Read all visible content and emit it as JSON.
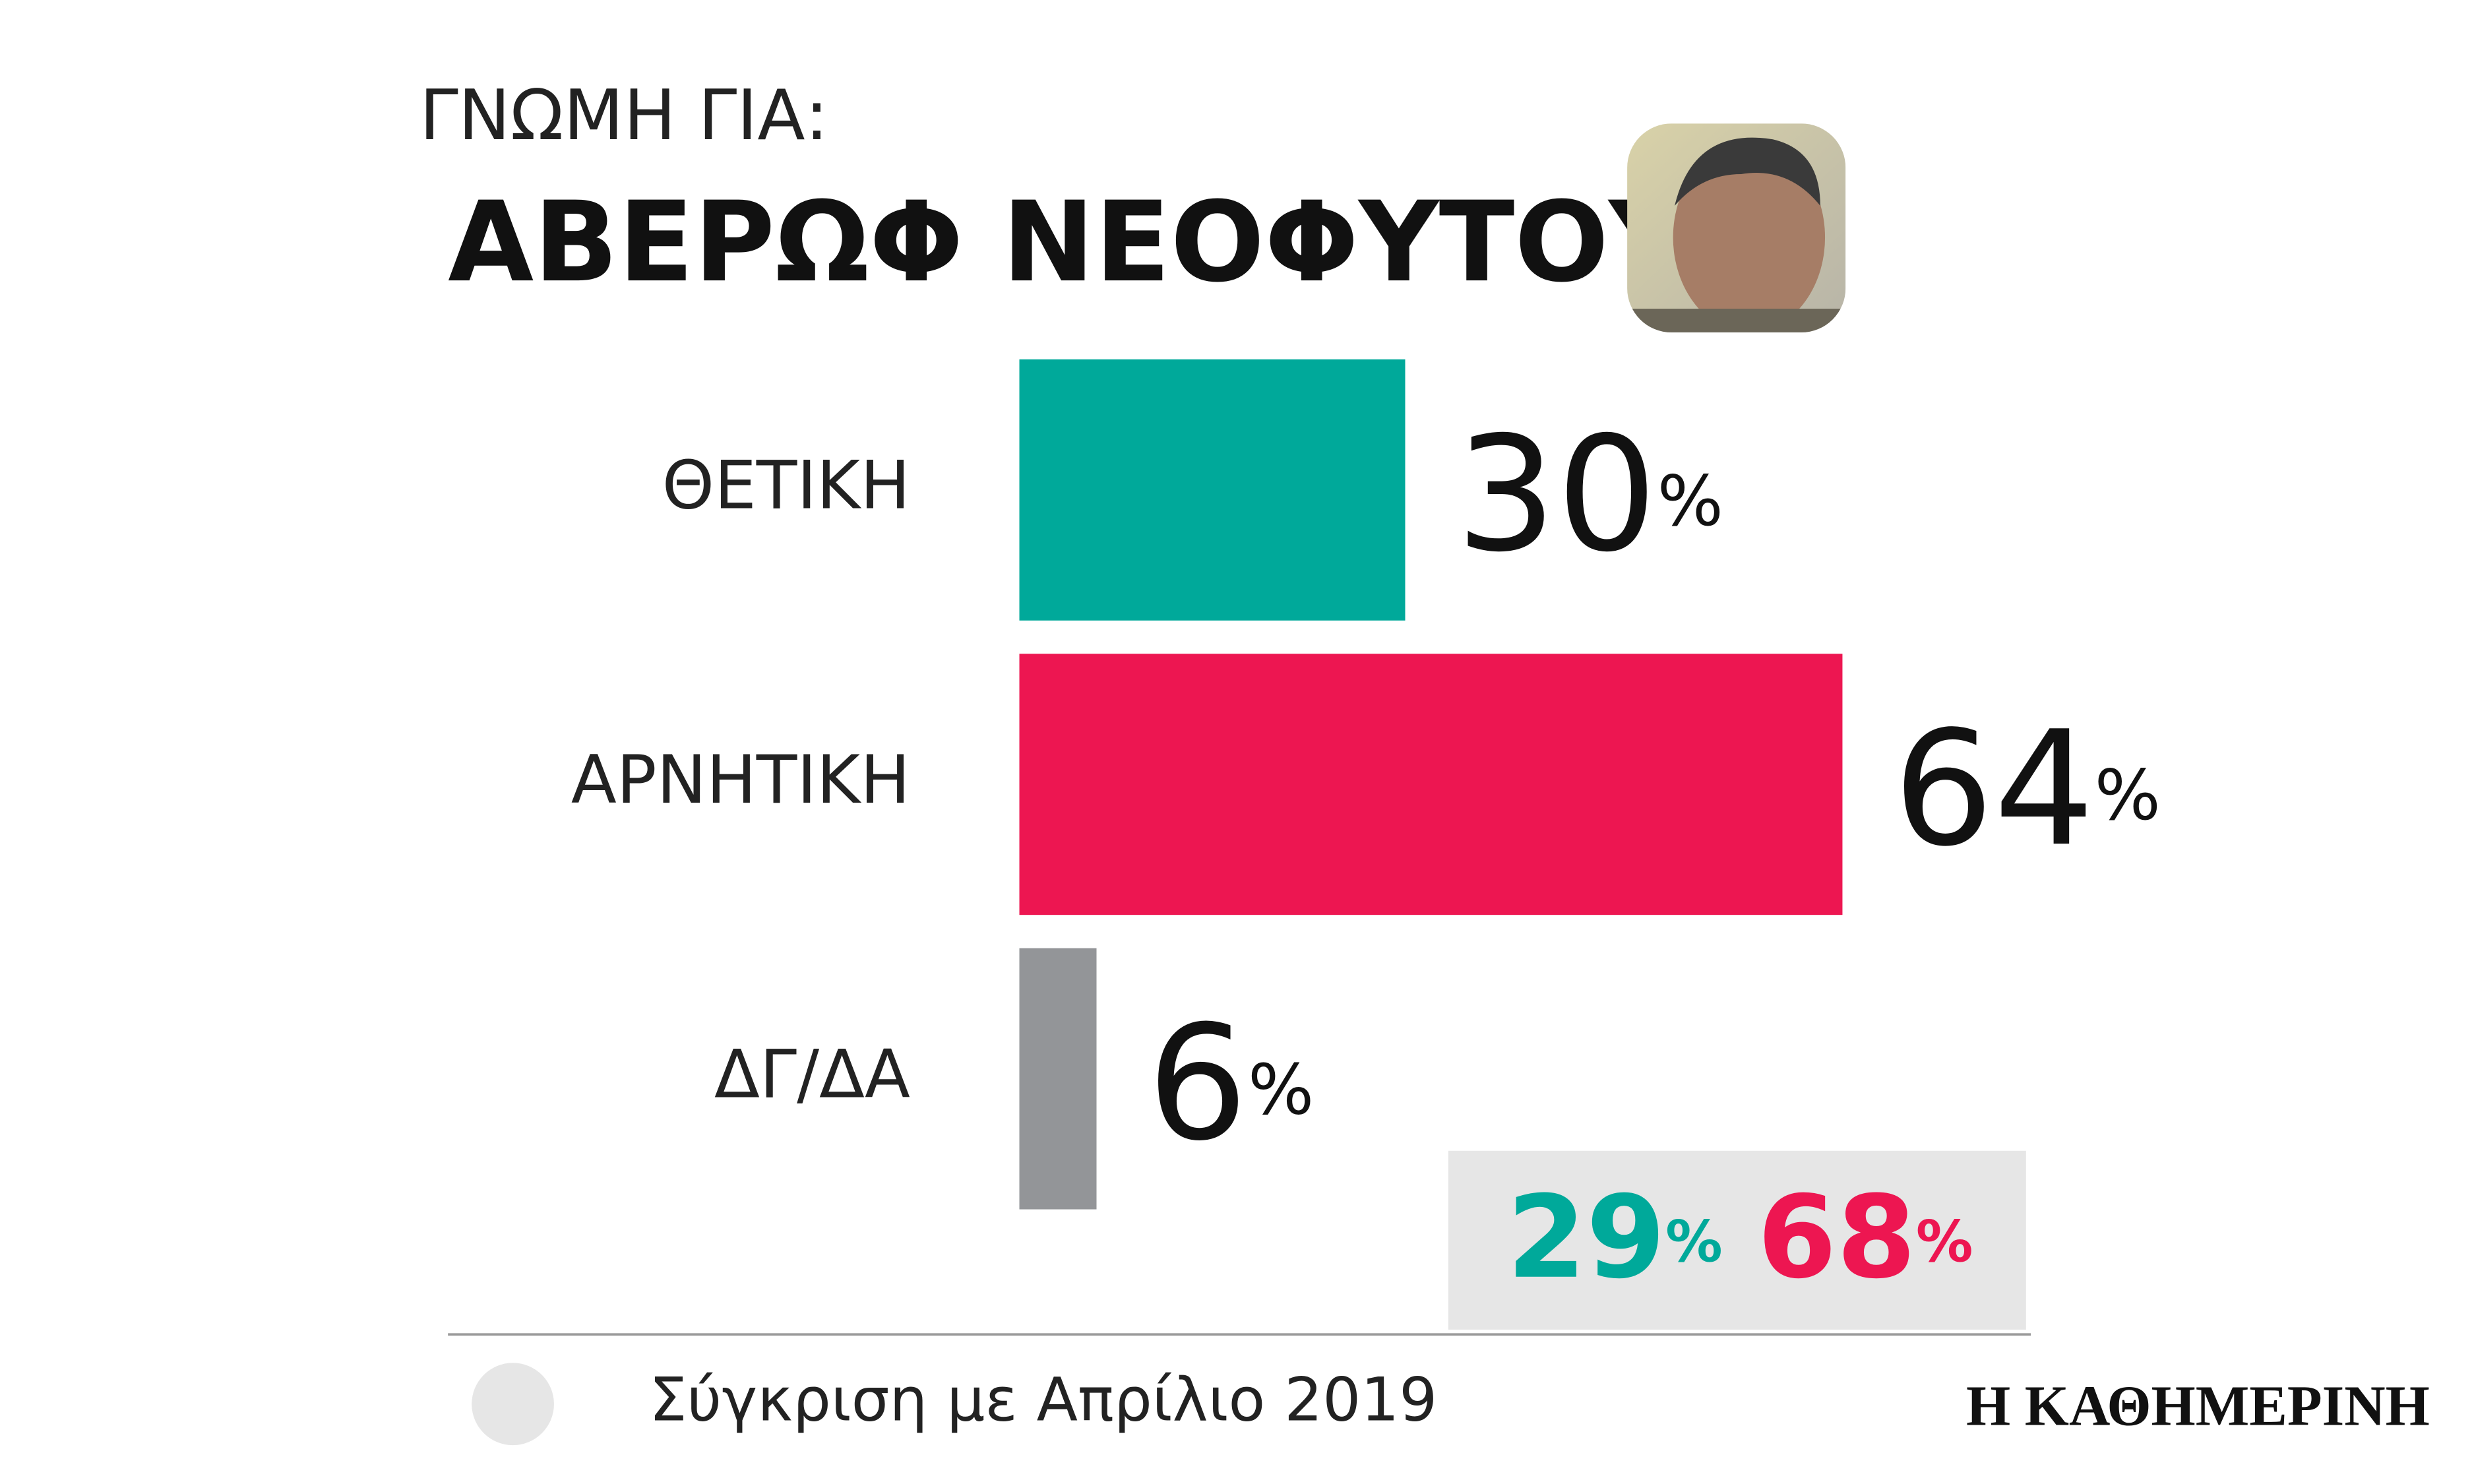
{
  "chart_data": {
    "type": "bar",
    "orientation": "horizontal",
    "subtitle": "ΓΝΩΜΗ ΓΙΑ:",
    "title": "ΑΒΕΡΩΦ ΝΕΟΦΥΤΟΥ",
    "categories": [
      "ΘΕΤΙΚΗ",
      "ΑΡΝΗΤΙΚΗ",
      "ΔΓ/ΔΑ"
    ],
    "values": [
      30,
      64,
      6
    ],
    "value_unit": "%",
    "colors": [
      "#00a99a",
      "#ed1651",
      "#939598"
    ],
    "comparison": {
      "label": "Σύγκριση με Απρίλιο 2019",
      "values": [
        29,
        68
      ],
      "color": "#e6e6e6"
    },
    "source": "Η ΚΑΘΗΜΕΡΙΝΗ"
  }
}
